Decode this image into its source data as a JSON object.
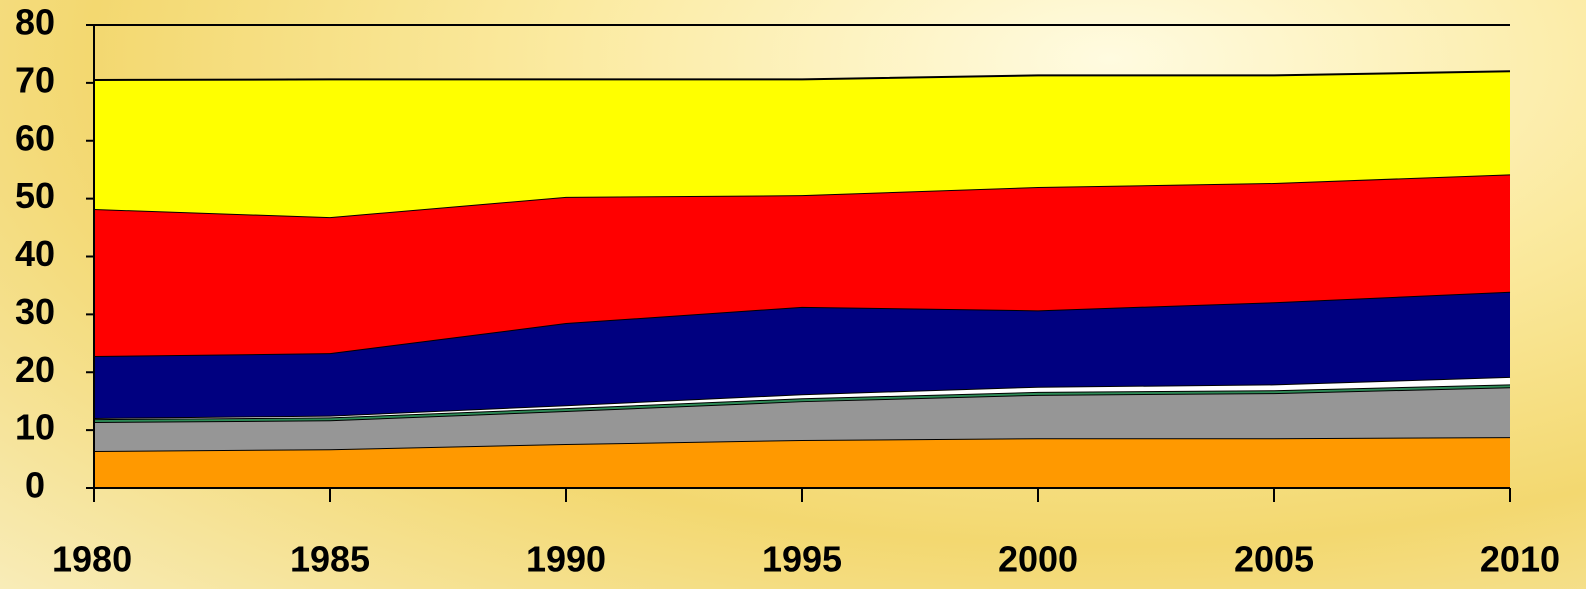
{
  "chart_data": {
    "type": "stacked-area",
    "x": [
      1980,
      1985,
      1990,
      1995,
      2000,
      2005,
      2010
    ],
    "series": [
      {
        "color": "#ff9900",
        "values": [
          6.4,
          6.7,
          7.6,
          8.3,
          8.6,
          8.6,
          8.8
        ]
      },
      {
        "color": "#969696",
        "values": [
          5.0,
          5.0,
          5.7,
          6.7,
          7.5,
          7.8,
          8.6
        ]
      },
      {
        "color": "#2e8b57",
        "values": [
          0.5,
          0.5,
          0.5,
          0.5,
          0.5,
          0.5,
          0.5
        ]
      },
      {
        "color": "#ffffff",
        "values": [
          0.2,
          0.3,
          0.5,
          0.7,
          0.9,
          1.0,
          1.3
        ]
      },
      {
        "color": "#000080",
        "values": [
          10.7,
          10.8,
          14.2,
          15.1,
          13.2,
          14.2,
          14.7
        ]
      },
      {
        "color": "#ff0000",
        "values": [
          25.4,
          23.5,
          21.8,
          19.3,
          21.3,
          20.6,
          20.3
        ]
      },
      {
        "color": "#ffff00",
        "values": [
          22.3,
          23.8,
          20.3,
          20.0,
          19.3,
          18.6,
          17.8
        ]
      }
    ],
    "xlim": [
      1980,
      2010
    ],
    "xticks": [
      1980,
      1985,
      1990,
      1995,
      2000,
      2005,
      2010
    ],
    "ylim": [
      0,
      80
    ],
    "yticks": [
      0,
      10,
      20,
      30,
      40,
      50,
      60,
      70,
      80
    ],
    "grid": false
  }
}
